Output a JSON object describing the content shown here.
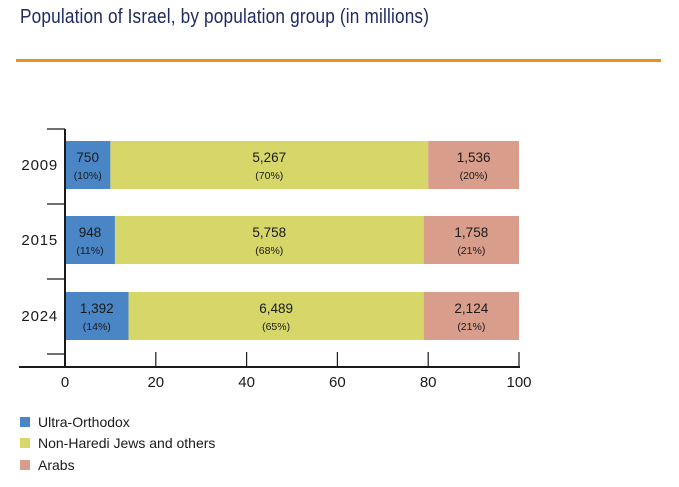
{
  "chart_data": {
    "type": "bar",
    "orientation": "horizontal",
    "stacked": true,
    "title": "Population of Israel, by population group (in millions)",
    "xlabel": "",
    "ylabel": "",
    "xlim": [
      0,
      100
    ],
    "x_ticks": [
      "0",
      "20",
      "40",
      "60",
      "80",
      "100"
    ],
    "categories": [
      "2009",
      "2015",
      "2024"
    ],
    "series": [
      {
        "name": "Ultra-Orthodox",
        "color": "#4a86c5",
        "percent": [
          10,
          11,
          14
        ],
        "labels": [
          "750",
          "948",
          "1,392"
        ],
        "percent_labels": [
          "(10%)",
          "(11%)",
          "(14%)"
        ]
      },
      {
        "name": "Non-Haredi Jews and others",
        "color": "#d6d768",
        "percent": [
          70,
          68,
          65
        ],
        "labels": [
          "5,267",
          "5,758",
          "6,489"
        ],
        "percent_labels": [
          "(70%)",
          "(68%)",
          "(65%)"
        ]
      },
      {
        "name": "Arabs",
        "color": "#d99e8b",
        "percent": [
          20,
          21,
          21
        ],
        "labels": [
          "1,536",
          "1,758",
          "2,124"
        ],
        "percent_labels": [
          "(20%)",
          "(21%)",
          "(21%)"
        ]
      }
    ],
    "legend_position": "bottom-left",
    "grid": false
  },
  "colors": {
    "title": "#1f2a63",
    "rule": "#e8921f",
    "axis": "#1a1a1a"
  }
}
